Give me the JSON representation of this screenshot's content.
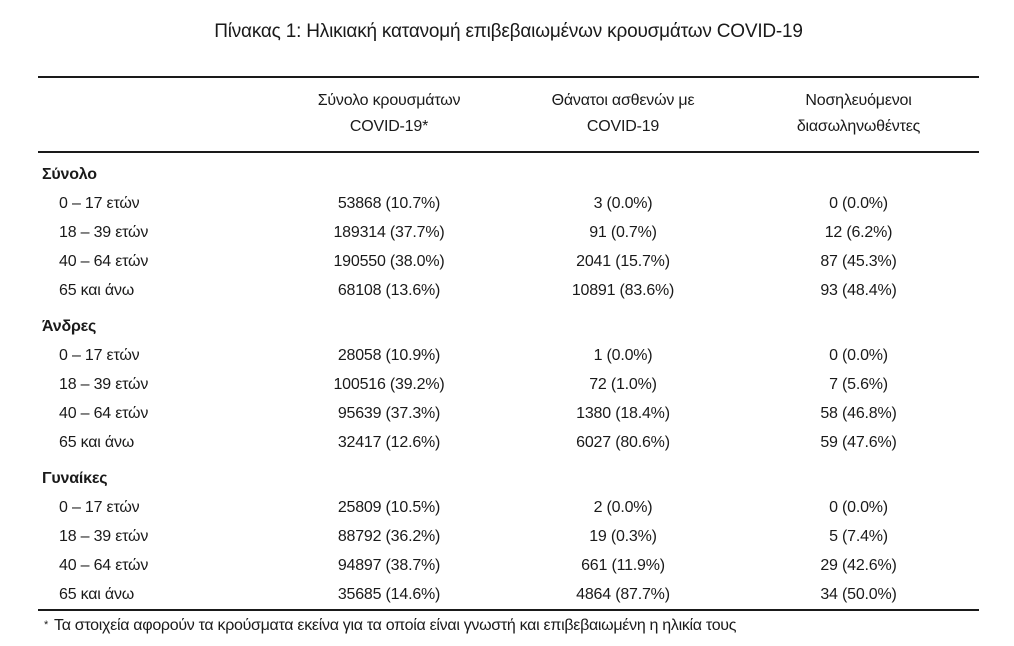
{
  "page": {
    "title": "Πίνακας 1: Ηλικιακή κατανομή επιβεβαιωμένων κρουσμάτων COVID-19"
  },
  "table": {
    "row_header_column": "",
    "columns": [
      {
        "line1": "Σύνολο κρουσμάτων",
        "line2": "COVID-19*"
      },
      {
        "line1": "Θάνατοι ασθενών με",
        "line2": "COVID-19"
      },
      {
        "line1": "Νοσηλευόμενοι",
        "line2": "διασωληνωθέντες"
      }
    ],
    "sections": [
      {
        "label": "Σύνολο",
        "rows": [
          {
            "label": "0 – 17 ετών",
            "cases": "53868 (10.7%)",
            "deaths": "3 (0.0%)",
            "intubated": "0 (0.0%)"
          },
          {
            "label": "18 – 39 ετών",
            "cases": "189314 (37.7%)",
            "deaths": "91 (0.7%)",
            "intubated": "12 (6.2%)"
          },
          {
            "label": "40 – 64 ετών",
            "cases": "190550 (38.0%)",
            "deaths": "2041 (15.7%)",
            "intubated": "87 (45.3%)"
          },
          {
            "label": "65 και άνω",
            "cases": "68108 (13.6%)",
            "deaths": "10891 (83.6%)",
            "intubated": "93 (48.4%)"
          }
        ]
      },
      {
        "label": "Άνδρες",
        "rows": [
          {
            "label": "0 – 17 ετών",
            "cases": "28058 (10.9%)",
            "deaths": "1 (0.0%)",
            "intubated": "0 (0.0%)"
          },
          {
            "label": "18 – 39 ετών",
            "cases": "100516 (39.2%)",
            "deaths": "72 (1.0%)",
            "intubated": "7 (5.6%)"
          },
          {
            "label": "40 – 64 ετών",
            "cases": "95639 (37.3%)",
            "deaths": "1380 (18.4%)",
            "intubated": "58 (46.8%)"
          },
          {
            "label": "65 και άνω",
            "cases": "32417 (12.6%)",
            "deaths": "6027 (80.6%)",
            "intubated": "59 (47.6%)"
          }
        ]
      },
      {
        "label": "Γυναίκες",
        "rows": [
          {
            "label": "0 – 17 ετών",
            "cases": "25809 (10.5%)",
            "deaths": "2 (0.0%)",
            "intubated": "0 (0.0%)"
          },
          {
            "label": "18 – 39 ετών",
            "cases": "88792 (36.2%)",
            "deaths": "19 (0.3%)",
            "intubated": "5 (7.4%)"
          },
          {
            "label": "40 – 64 ετών",
            "cases": "94897 (38.7%)",
            "deaths": "661 (11.9%)",
            "intubated": "29 (42.6%)"
          },
          {
            "label": "65 και άνω",
            "cases": "35685 (14.6%)",
            "deaths": "4864 (87.7%)",
            "intubated": "34 (50.0%)"
          }
        ]
      }
    ]
  },
  "footnote": {
    "marker": "*",
    "text": "Τα στοιχεία αφορούν τα κρούσματα εκείνα για τα οποία είναι γνωστή και επιβεβαιωμένη η ηλικία τους"
  },
  "colors": {
    "text": "#1a1a1a",
    "rule": "#1a1a1a",
    "bottom_divider": "#ccd6de",
    "background": "#ffffff"
  }
}
